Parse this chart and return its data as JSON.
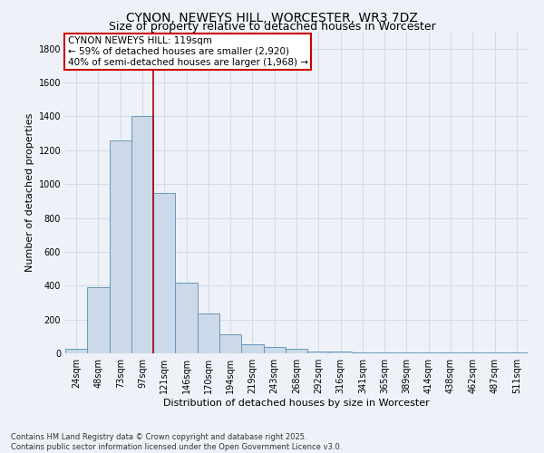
{
  "title": "CYNON, NEWEYS HILL, WORCESTER, WR3 7DZ",
  "subtitle": "Size of property relative to detached houses in Worcester",
  "xlabel": "Distribution of detached houses by size in Worcester",
  "ylabel": "Number of detached properties",
  "categories": [
    "24sqm",
    "48sqm",
    "73sqm",
    "97sqm",
    "121sqm",
    "146sqm",
    "170sqm",
    "194sqm",
    "219sqm",
    "243sqm",
    "268sqm",
    "292sqm",
    "316sqm",
    "341sqm",
    "365sqm",
    "389sqm",
    "414sqm",
    "438sqm",
    "462sqm",
    "487sqm",
    "511sqm"
  ],
  "values": [
    25,
    390,
    1260,
    1400,
    950,
    420,
    235,
    115,
    55,
    35,
    25,
    10,
    10,
    5,
    5,
    5,
    5,
    5,
    5,
    5,
    5
  ],
  "bar_color": "#ccd9e8",
  "bar_edge_color": "#6699bb",
  "vline_x_index": 3.5,
  "vline_color": "#aa0000",
  "annotation_title": "CYNON NEWEYS HILL: 119sqm",
  "annotation_line1": "← 59% of detached houses are smaller (2,920)",
  "annotation_line2": "40% of semi-detached houses are larger (1,968) →",
  "annotation_box_color": "#cc0000",
  "annotation_bg_color": "#ffffff",
  "ylim": [
    0,
    1900
  ],
  "yticks": [
    0,
    200,
    400,
    600,
    800,
    1000,
    1200,
    1400,
    1600,
    1800
  ],
  "grid_color": "#d0dce8",
  "background_color": "#eef2f8",
  "footer_line1": "Contains HM Land Registry data © Crown copyright and database right 2025.",
  "footer_line2": "Contains public sector information licensed under the Open Government Licence v3.0.",
  "title_fontsize": 10,
  "subtitle_fontsize": 9,
  "axis_label_fontsize": 8,
  "tick_fontsize": 7,
  "annotation_fontsize": 7.5,
  "footer_fontsize": 6
}
